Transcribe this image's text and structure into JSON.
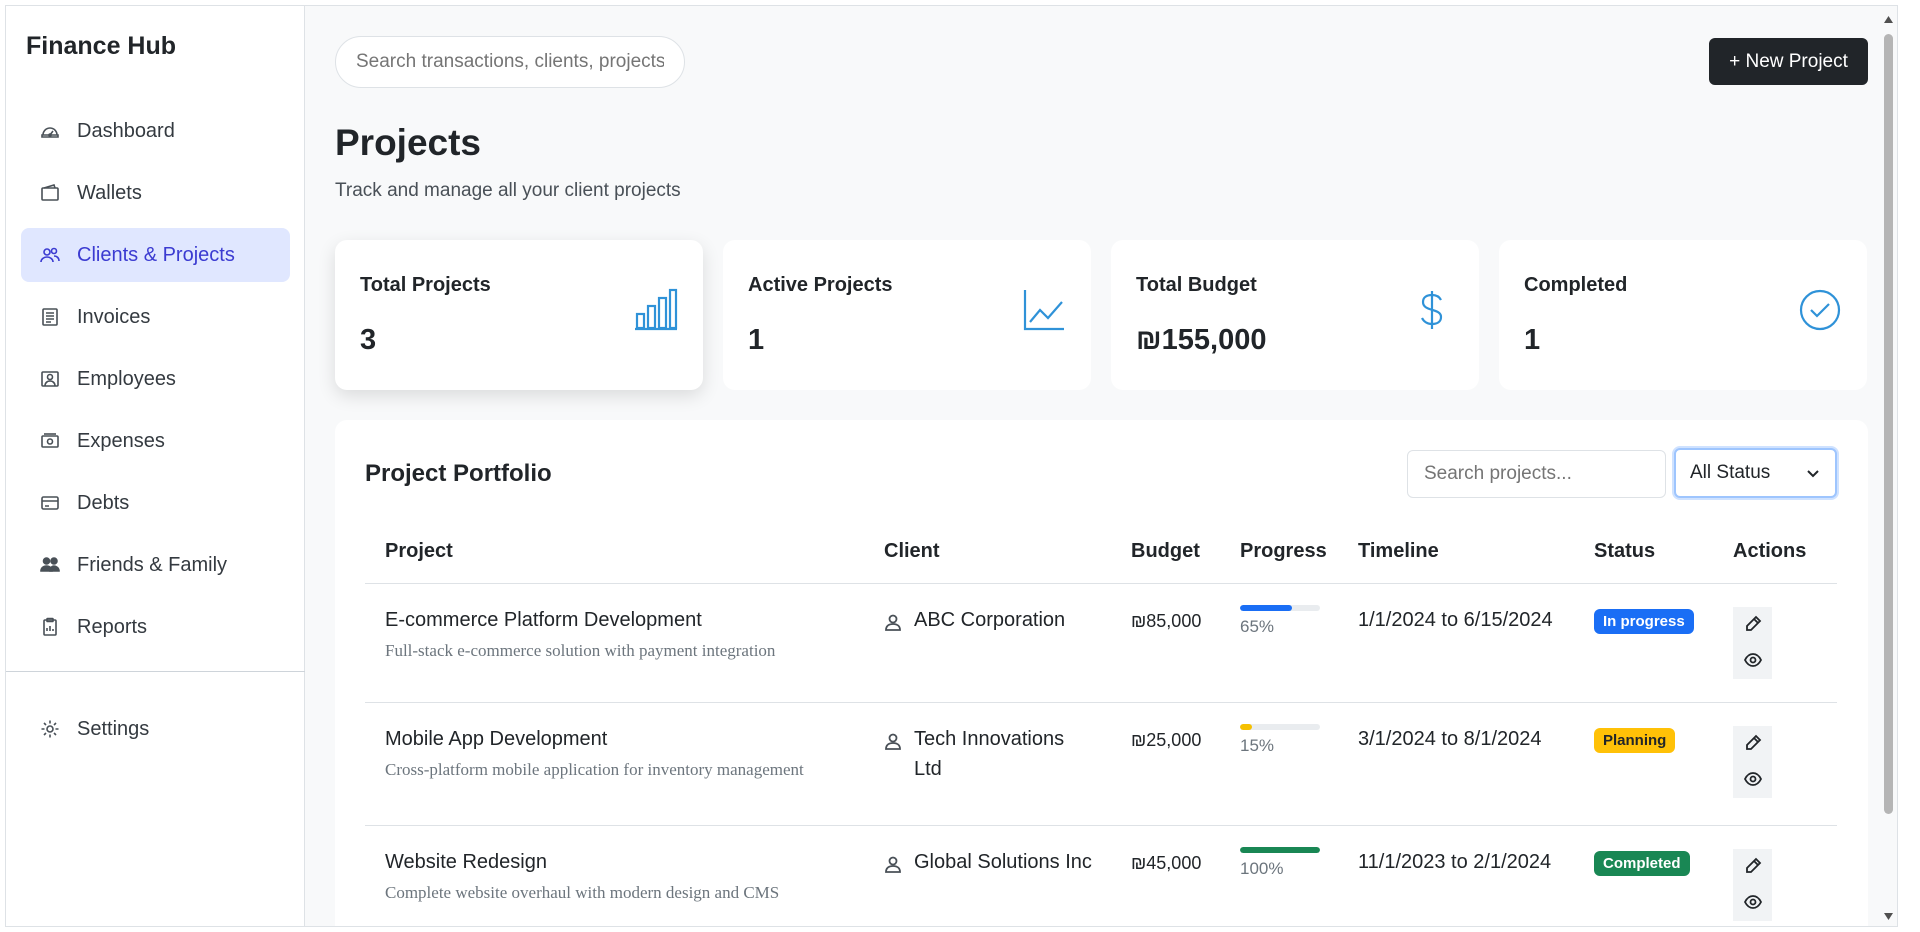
{
  "app": {
    "title": "Finance Hub"
  },
  "sidebar": {
    "items": [
      {
        "label": "Dashboard",
        "icon": "dashboard-icon"
      },
      {
        "label": "Wallets",
        "icon": "wallet-icon"
      },
      {
        "label": "Clients & Projects",
        "icon": "users-icon",
        "active": true
      },
      {
        "label": "Invoices",
        "icon": "invoice-icon"
      },
      {
        "label": "Employees",
        "icon": "employee-icon"
      },
      {
        "label": "Expenses",
        "icon": "cash-icon"
      },
      {
        "label": "Debts",
        "icon": "credit-card-icon"
      },
      {
        "label": "Friends & Family",
        "icon": "people-icon"
      },
      {
        "label": "Reports",
        "icon": "clipboard-icon"
      }
    ],
    "bottom": {
      "label": "Settings",
      "icon": "gear-icon"
    }
  },
  "header": {
    "search_placeholder": "Search transactions, clients, projects...",
    "new_project_label": "+ New Project"
  },
  "page": {
    "title": "Projects",
    "subtitle": "Track and manage all your client projects"
  },
  "stats": [
    {
      "label": "Total Projects",
      "value": "3",
      "icon": "bar-chart-icon"
    },
    {
      "label": "Active Projects",
      "value": "1",
      "icon": "line-chart-icon"
    },
    {
      "label": "Total Budget",
      "value": "₪155,000",
      "icon": "dollar-icon"
    },
    {
      "label": "Completed",
      "value": "1",
      "icon": "check-circle-icon"
    }
  ],
  "portfolio": {
    "title": "Project Portfolio",
    "search_placeholder": "Search projects...",
    "status_filter": "All Status",
    "columns": [
      "Project",
      "Client",
      "Budget",
      "Progress",
      "Timeline",
      "Status",
      "Actions"
    ],
    "rows": [
      {
        "name": "E-commerce Platform Development",
        "description": "Full-stack e-commerce solution with payment integration",
        "client": "ABC Corporation",
        "budget": "₪85,000",
        "progress": 65,
        "progress_label": "65%",
        "timeline": "1/1/2024 to 6/15/2024",
        "status": "In progress"
      },
      {
        "name": "Mobile App Development",
        "description": "Cross-platform mobile application for inventory management",
        "client": "Tech Innovations Ltd",
        "budget": "₪25,000",
        "progress": 15,
        "progress_label": "15%",
        "timeline": "3/1/2024 to 8/1/2024",
        "status": "Planning"
      },
      {
        "name": "Website Redesign",
        "description": "Complete website overhaul with modern design and CMS",
        "client": "Global Solutions Inc",
        "budget": "₪45,000",
        "progress": 100,
        "progress_label": "100%",
        "timeline": "11/1/2023 to 2/1/2024",
        "status": "Completed"
      }
    ]
  },
  "colors": {
    "accent": "#3b3bd1",
    "active_bg": "#e0e7ff",
    "stat_icon": "#2f92d8",
    "progress_in_progress": "#1a6ef5",
    "progress_planning": "#f5c000",
    "progress_completed": "#198754",
    "badge_in_progress": "#1a6ef5",
    "badge_planning": "#ffc107",
    "badge_completed": "#198754"
  }
}
